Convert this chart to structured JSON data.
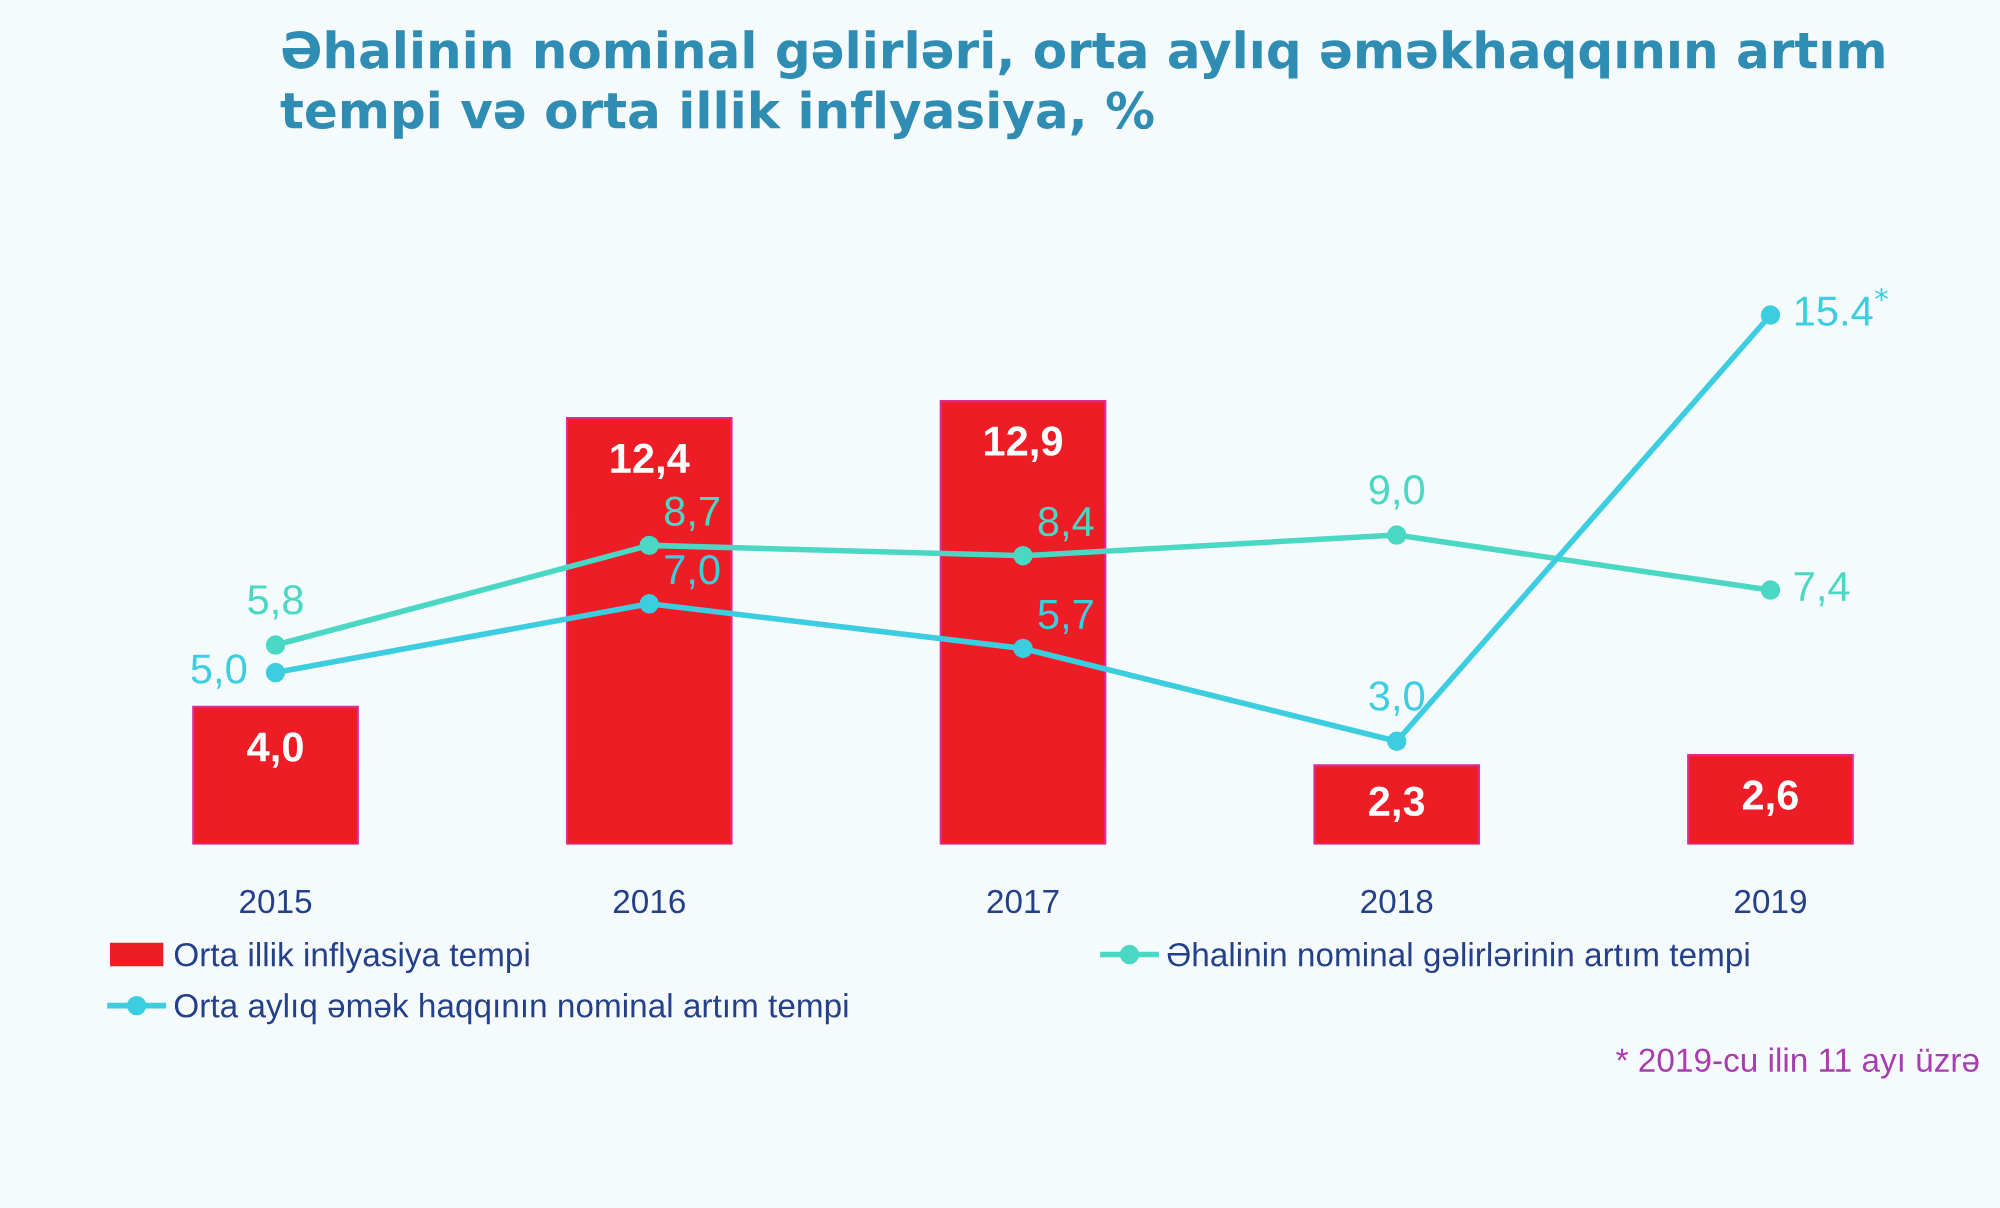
{
  "chart_data": {
    "type": "bar",
    "title": "Əhalinin nominal gəlirləri, orta aylıq əməkhaqqının artım\ntempi və orta illik inflyasiya, %",
    "categories": [
      "2015",
      "2016",
      "2017",
      "2018",
      "2019"
    ],
    "series": [
      {
        "name": "Orta illik inflyasiya tempi",
        "color": "#ee1c25",
        "values": [
          4.0,
          12.4,
          12.9,
          2.3,
          2.6
        ],
        "value_labels": [
          "4,0",
          "12,4",
          "12,9",
          "2,3",
          "2,6"
        ]
      },
      {
        "name": "Əhalinin nominal gəlirlərinin artım tempi",
        "type": "line",
        "color": "#4ad8c4",
        "values": [
          5.8,
          8.7,
          8.4,
          9.0,
          7.4
        ],
        "value_labels": [
          "5,8",
          "8,7",
          "8,4",
          "9,0",
          "7,4"
        ]
      },
      {
        "name": "Orta aylıq əmək haqqının nominal artım tempi",
        "type": "line",
        "color": "#3ccde0",
        "values": [
          5.0,
          7.0,
          5.7,
          3.0,
          15.4
        ],
        "value_labels": [
          "5,0",
          "7,0",
          "5,7",
          "3,0",
          "15.4$^{*}$"
        ]
      }
    ],
    "marker": "circle",
    "line_style": "solid",
    "legend": "bottom",
    "grid": false,
    "tick_labels": "x",
    "annotations": [
      "* 2019-cu ilin 11 ayı üzrə"
    ]
  }
}
